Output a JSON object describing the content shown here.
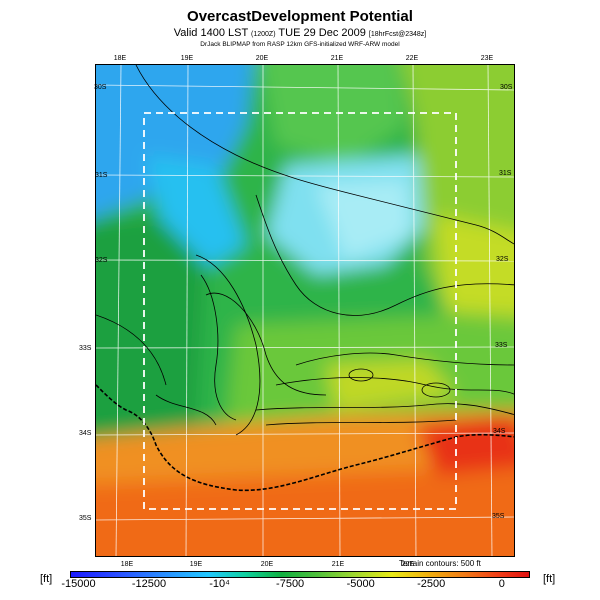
{
  "header": {
    "title": "OvercastDevelopment Potential",
    "subtitle_main": "Valid 1400 LST",
    "subtitle_paren": "(1200Z)",
    "subtitle_date": "TUE 29 Dec 2009",
    "subtitle_tail": "[18hrFcst@2348z]",
    "credits": "DrJack BLIPMAP from RASP 12km GFS-initialized WRF-ARW model"
  },
  "map": {
    "lon_top": [
      "18E",
      "19E",
      "20E",
      "21E",
      "22E",
      "23E"
    ],
    "lon_bottom": [
      "18E",
      "19E",
      "20E",
      "21E",
      "22E"
    ],
    "lat_left": [
      "30S",
      "31S",
      "32S",
      "33S",
      "34S",
      "35S"
    ],
    "lat_right": [
      "30S",
      "31S",
      "32S",
      "33S",
      "34S",
      "35S"
    ],
    "terrain_note": "Terrain contours: 500 ft"
  },
  "legend": {
    "unit": "[ft]",
    "ticks": [
      "-15000",
      "-12500",
      "-10⁴",
      "-7500",
      "-5000",
      "-2500",
      "0"
    ],
    "tick_values": [
      -15000,
      -12500,
      -10000,
      -7500,
      -5000,
      -2500,
      0
    ],
    "range": [
      -15300,
      1000
    ],
    "colors": [
      "#1a1aff",
      "#2a8cff",
      "#22c8ff",
      "#10b040",
      "#a0d830",
      "#e8ea18",
      "#f07a18",
      "#e01010"
    ]
  }
}
